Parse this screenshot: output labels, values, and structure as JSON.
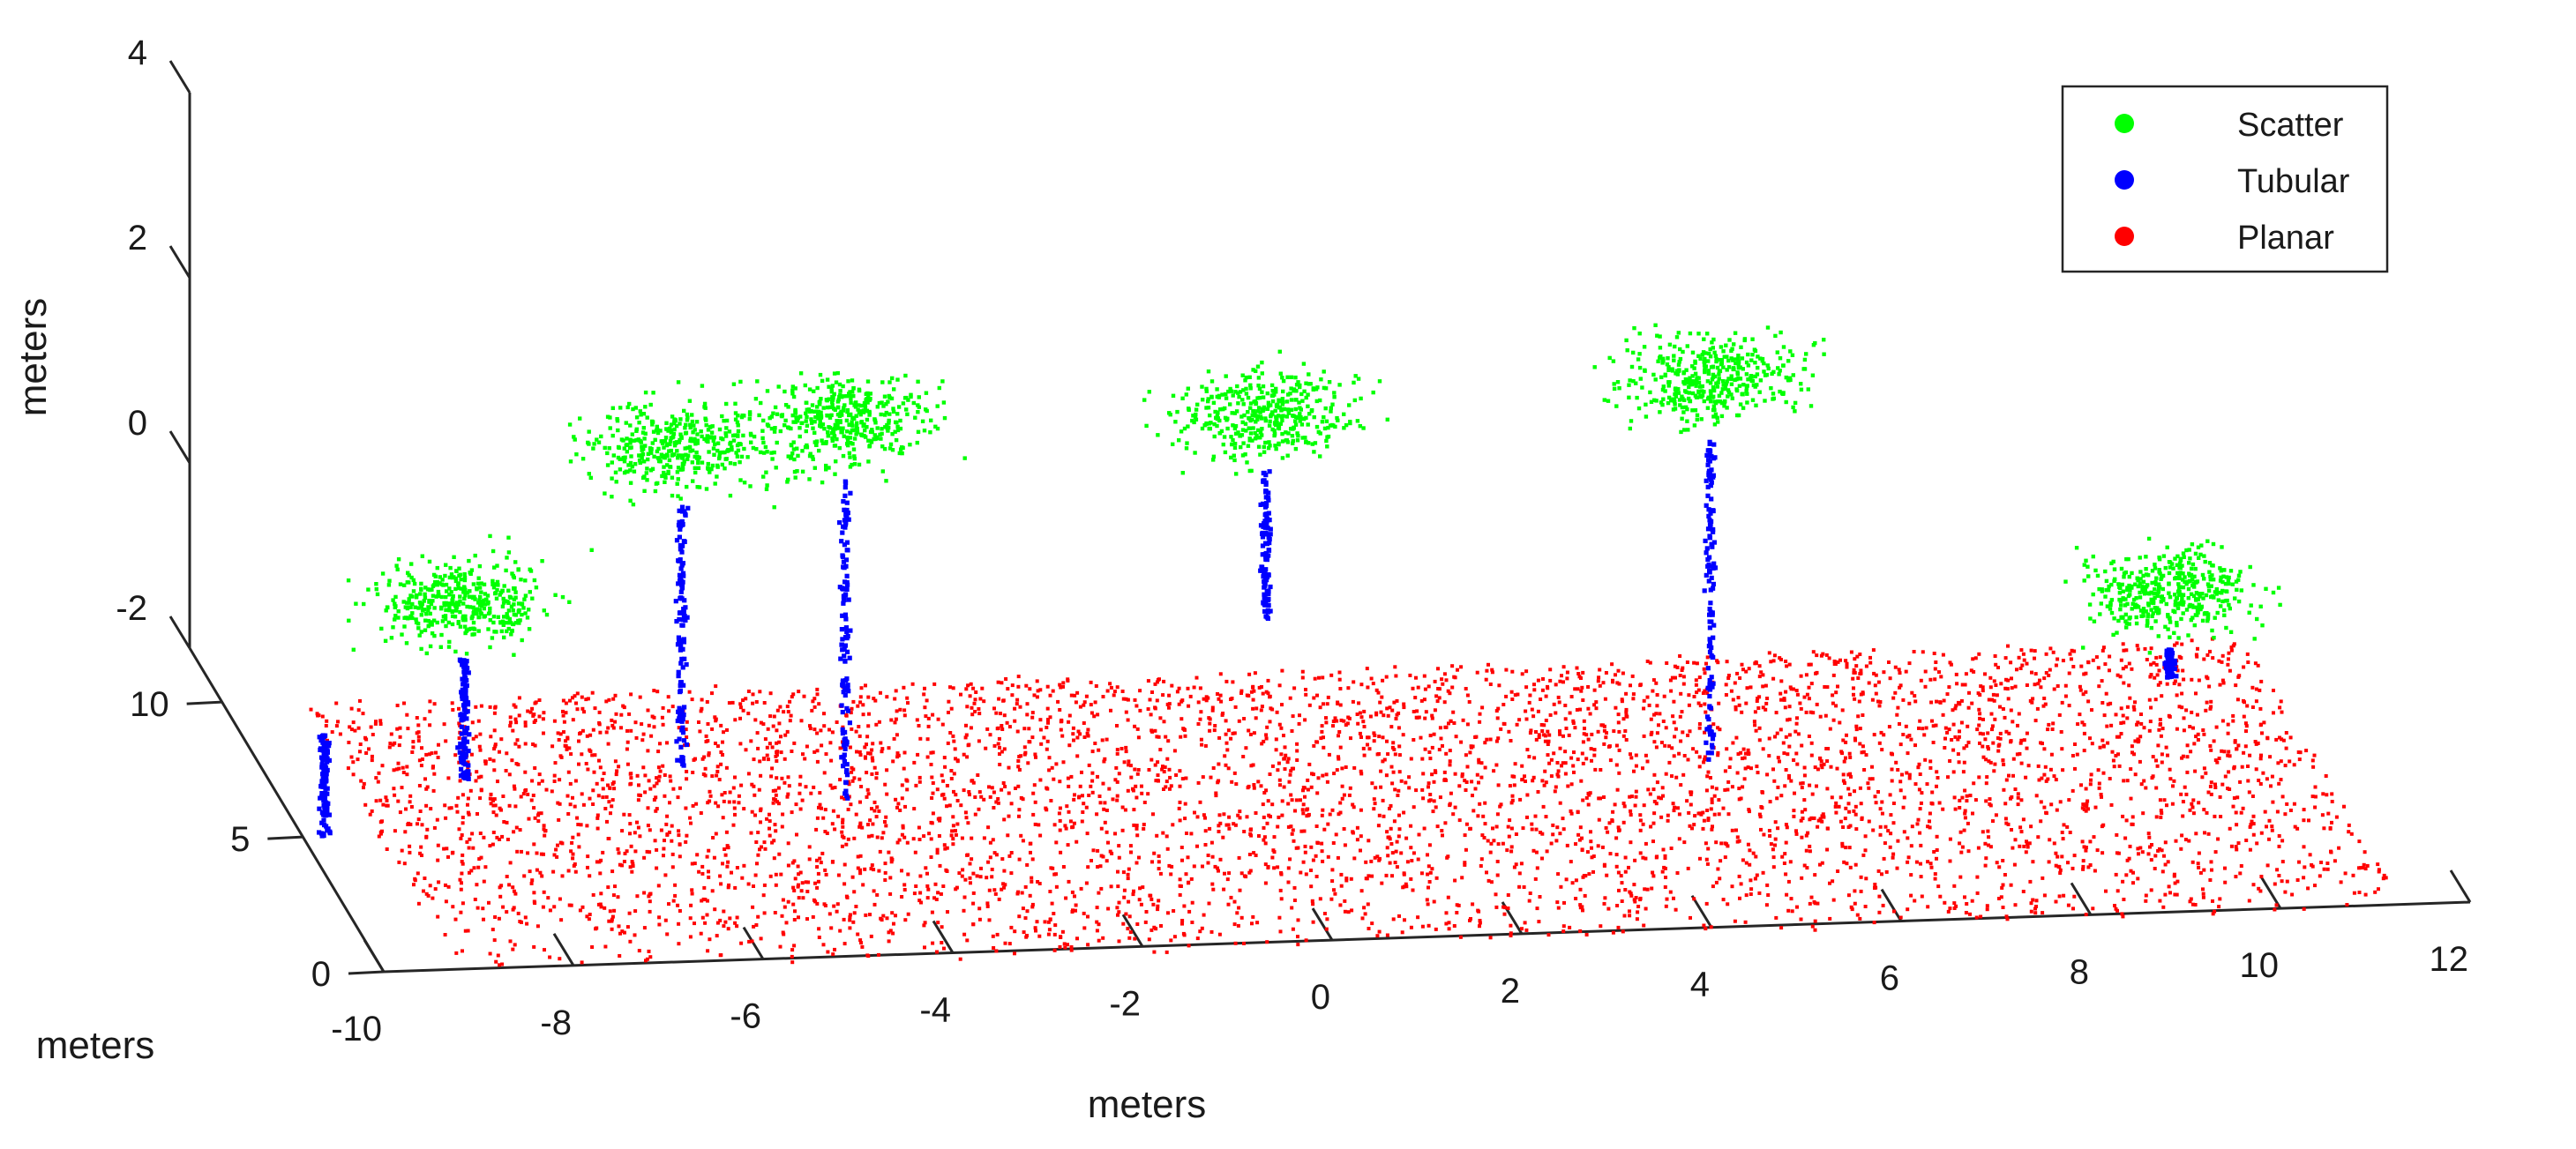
{
  "chart_data": {
    "type": "scatter",
    "title": "",
    "xlabel": "meters",
    "ylabel": "meters",
    "zlabel": "meters",
    "xlim": [
      -10,
      12
    ],
    "ylim": [
      0,
      12
    ],
    "zlim": [
      -2,
      4
    ],
    "x_ticks": [
      "-10",
      "-8",
      "-6",
      "-4",
      "-2",
      "0",
      "2",
      "4",
      "6",
      "8",
      "10",
      "12"
    ],
    "y_ticks": [
      "0",
      "5",
      "10"
    ],
    "z_ticks": [
      "-2",
      "0",
      "2",
      "4"
    ],
    "grid": false,
    "legend_position": "top-right",
    "series": [
      {
        "name": "Scatter",
        "color": "#00ff00"
      },
      {
        "name": "Tubular",
        "color": "#0000ff"
      },
      {
        "name": "Planar",
        "color": "#ff0000"
      }
    ],
    "trees": [
      {
        "x": -9.6,
        "base_z": -2.3,
        "top_z": -1.2,
        "crown": false
      },
      {
        "x": -7.8,
        "base_z": -2.3,
        "top_z": -1.0,
        "crown": true
      },
      {
        "x": -5.5,
        "base_z": -2.3,
        "top_z": 0.6,
        "crown": true
      },
      {
        "x": -4.0,
        "base_z": -2.3,
        "top_z": 1.2,
        "crown": true
      },
      {
        "x": 0.5,
        "base_z": -0.6,
        "top_z": 1.0,
        "crown": true
      },
      {
        "x": 5.2,
        "base_z": -2.3,
        "top_z": 1.2,
        "crown": true
      },
      {
        "x": 10.0,
        "base_z": -1.5,
        "top_z": -1.2,
        "crown": true
      }
    ]
  }
}
